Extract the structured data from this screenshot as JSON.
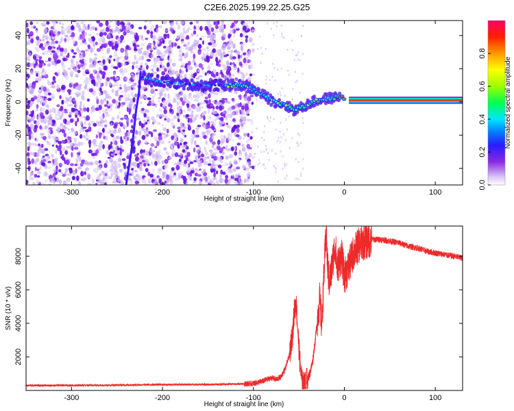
{
  "title": "C2E6.2025.199.22.25.G25",
  "colors": {
    "snr_line": "#ee2a2a",
    "frame": "#000000",
    "scatter_main": "#7a1ef0",
    "scatter_light": "#cbb4f5"
  },
  "chart_data": [
    {
      "type": "heatmap",
      "xlabel": "Height of straight line (km)",
      "ylabel": "Frequency (Hz)",
      "xlim": [
        -350,
        130
      ],
      "ylim": [
        -50,
        49
      ],
      "xticks": [
        -300,
        -200,
        -100,
        0,
        100
      ],
      "yticks": [
        -40,
        -20,
        0,
        20,
        40
      ],
      "colorbar": {
        "label": "Normalized spectral amplitude",
        "range": [
          0.0,
          1.0
        ],
        "ticks": [
          "0.0",
          "0.2",
          "0.4",
          "0.6",
          "0.8"
        ],
        "colormap": [
          "#ffffff",
          "#dcc6f8",
          "#8a2be2",
          "#3a1aff",
          "#0088ff",
          "#00e0ff",
          "#00ff40",
          "#9cff00",
          "#ffff00",
          "#ff9900",
          "#ff2000",
          "#ff0066"
        ]
      },
      "features": {
        "rising_trace": [
          [
            -240,
            -50
          ],
          [
            -233,
            -25
          ],
          [
            -229,
            -5
          ],
          [
            -226,
            5
          ],
          [
            -224,
            18
          ]
        ],
        "ridge": [
          [
            -222,
            15
          ],
          [
            -200,
            12
          ],
          [
            -160,
            10
          ],
          [
            -125,
            10
          ],
          [
            -110,
            10
          ],
          [
            -95,
            6
          ],
          [
            -80,
            1
          ],
          [
            -65,
            -2
          ],
          [
            -55,
            -5
          ],
          [
            -45,
            -3
          ],
          [
            -35,
            0
          ],
          [
            -20,
            2
          ],
          [
            -5,
            3
          ],
          [
            5,
            1
          ],
          [
            130,
            1
          ]
        ]
      }
    },
    {
      "type": "line",
      "xlabel": "Height of straight line (km)",
      "ylabel": "SNR (10 * v/v)",
      "xlim": [
        -350,
        130
      ],
      "ylim": [
        0,
        9800
      ],
      "xticks": [
        -300,
        -200,
        -100,
        0,
        100
      ],
      "yticks": [
        2000,
        4000,
        6000,
        8000
      ],
      "series": [
        {
          "x": [
            -350,
            -300,
            -250,
            -200,
            -150,
            -120,
            -100,
            -90,
            -80,
            -75,
            -70,
            -65,
            -60,
            -57,
            -55,
            -53,
            -51,
            -49,
            -47,
            -45,
            -43,
            -41,
            -38,
            -35,
            -32,
            -29,
            -27,
            -25,
            -22,
            -20,
            -19,
            -17,
            -15,
            -12,
            -10,
            -8,
            -5,
            -3,
            0,
            5,
            10,
            15,
            20,
            25,
            30,
            40,
            50,
            60,
            70,
            80,
            90,
            100,
            110,
            120,
            130
          ],
          "y": [
            300,
            300,
            320,
            350,
            350,
            380,
            420,
            550,
            750,
            650,
            800,
            1300,
            2200,
            3400,
            4700,
            5300,
            3400,
            1800,
            600,
            300,
            380,
            650,
            1000,
            1700,
            3000,
            4600,
            5400,
            3800,
            7400,
            9500,
            8000,
            6500,
            6800,
            8000,
            8700,
            7300,
            7800,
            8000,
            6800,
            7400,
            8200,
            8600,
            8800,
            8900,
            9000,
            9000,
            8900,
            8800,
            8600,
            8500,
            8300,
            8200,
            8100,
            8000,
            7900
          ]
        }
      ]
    }
  ]
}
